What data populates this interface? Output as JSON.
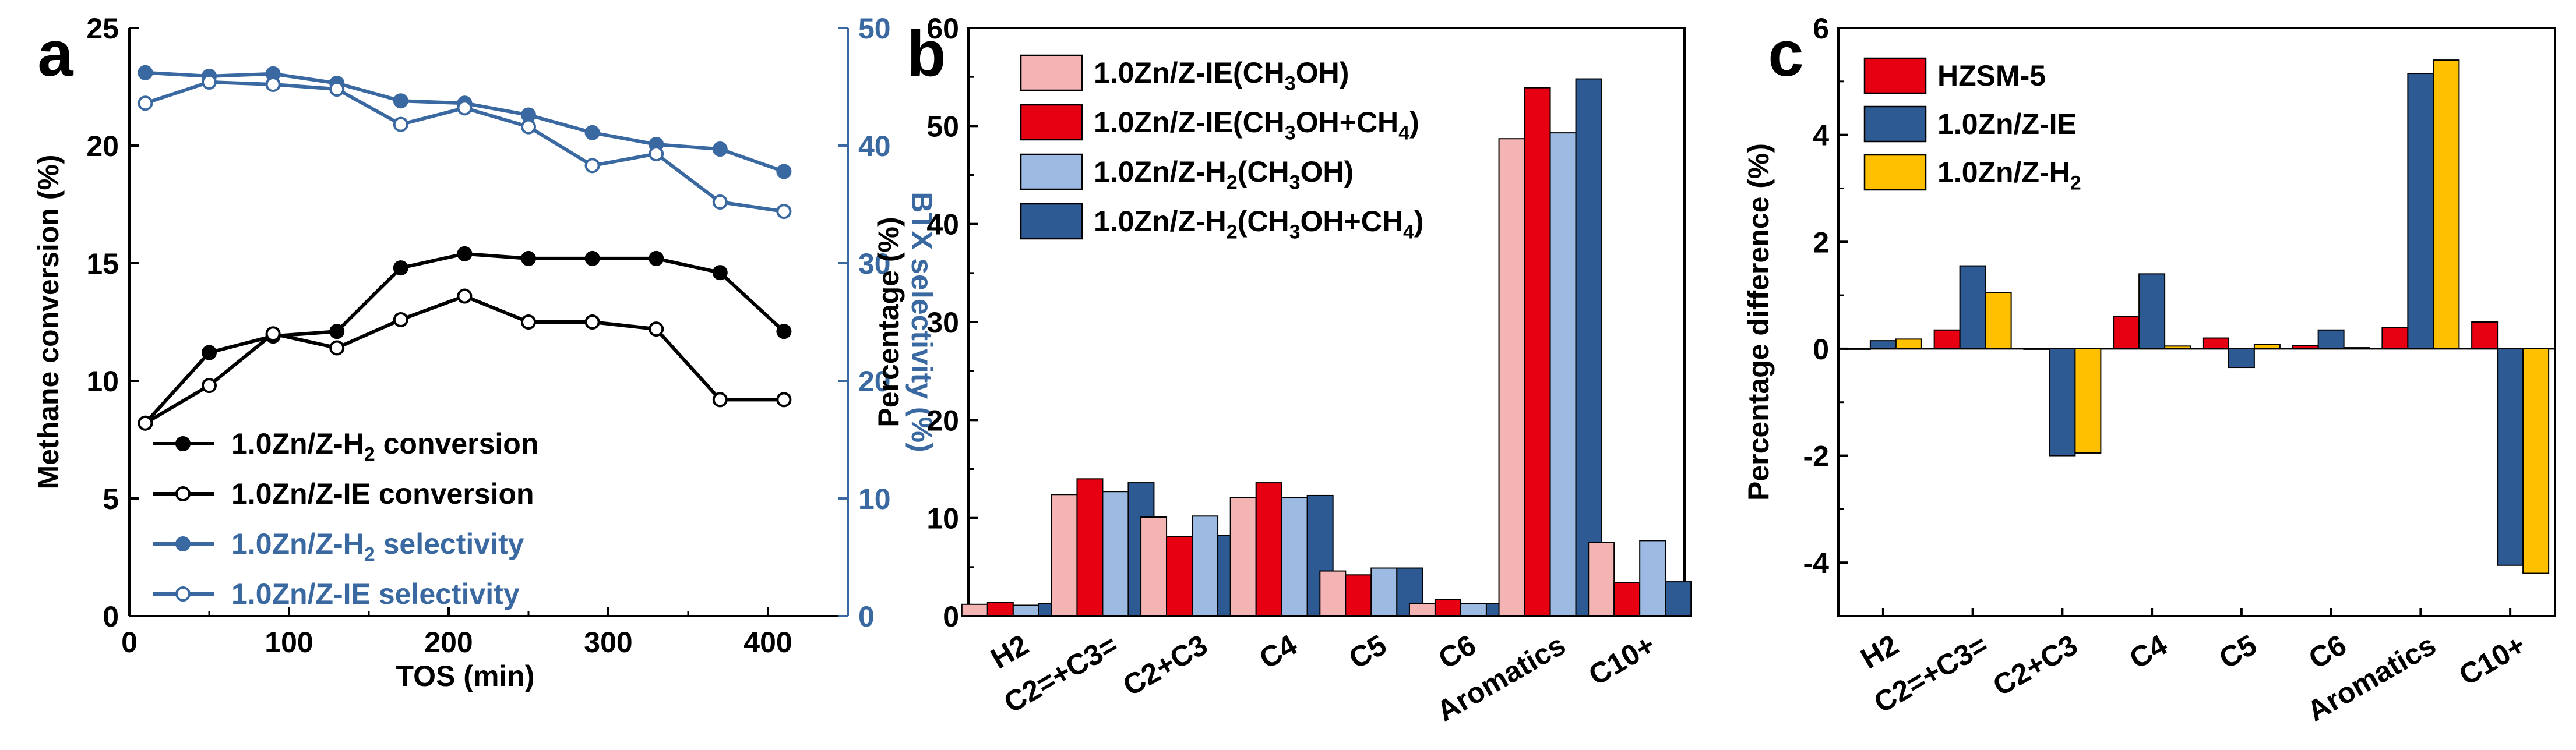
{
  "chart_data": [
    {
      "panel": "a",
      "type": "line",
      "xlabel": "TOS (min)",
      "ylabel": "Methane conversion (%)",
      "y2label": "BTX selectivity (%)",
      "xlim": [
        0,
        450
      ],
      "ylim": [
        0,
        25
      ],
      "y2lim": [
        0,
        50
      ],
      "xticks": [
        0,
        100,
        200,
        300,
        400
      ],
      "yticks": [
        0,
        5,
        10,
        15,
        20,
        25
      ],
      "y2ticks": [
        0,
        10,
        20,
        30,
        40,
        50
      ],
      "legend_position": "lower-left",
      "colors": {
        "black": "#000000",
        "blue": "#3a68a0"
      },
      "series": [
        {
          "name": "1.0Zn/Z-H2 conversion",
          "label_main": "1.0Zn/Z-H",
          "label_sub": "2",
          "label_tail": " conversion",
          "axis": "left",
          "marker": "filled",
          "color": "#000000",
          "x": [
            10,
            50,
            90,
            130,
            170,
            210,
            250,
            290,
            330,
            370,
            410
          ],
          "values": [
            8.2,
            11.2,
            11.9,
            12.1,
            14.8,
            15.4,
            15.2,
            15.2,
            15.2,
            14.6,
            12.1
          ]
        },
        {
          "name": "1.0Zn/Z-IE conversion",
          "label_main": "1.0Zn/Z-IE",
          "label_sub": "",
          "label_tail": " conversion",
          "axis": "left",
          "marker": "open",
          "color": "#000000",
          "x": [
            10,
            50,
            90,
            130,
            170,
            210,
            250,
            290,
            330,
            370,
            410
          ],
          "values": [
            8.2,
            9.8,
            12.0,
            11.4,
            12.6,
            13.6,
            12.5,
            12.5,
            12.2,
            9.2,
            9.2
          ]
        },
        {
          "name": "1.0Zn/Z-H2 selectivity",
          "label_main": "1.0Zn/Z-H",
          "label_sub": "2",
          "label_tail": " selectivity",
          "axis": "right",
          "marker": "filled",
          "color": "#3a68a0",
          "x": [
            10,
            50,
            90,
            130,
            170,
            210,
            250,
            290,
            330,
            370,
            410
          ],
          "values": [
            46.2,
            45.9,
            46.1,
            45.3,
            43.8,
            43.6,
            42.6,
            41.1,
            40.1,
            39.7,
            37.8
          ]
        },
        {
          "name": "1.0Zn/Z-IE selectivity",
          "label_main": "1.0Zn/Z-IE",
          "label_sub": "",
          "label_tail": " selectivity",
          "axis": "right",
          "marker": "open",
          "color": "#3a68a0",
          "x": [
            10,
            50,
            90,
            130,
            170,
            210,
            250,
            290,
            330,
            370,
            410
          ],
          "values": [
            43.6,
            45.4,
            45.2,
            44.8,
            41.8,
            43.2,
            41.6,
            38.3,
            39.3,
            35.2,
            34.4
          ]
        }
      ]
    },
    {
      "panel": "b",
      "type": "bar",
      "ylabel": "Percentage (%)",
      "ylim": [
        0,
        60
      ],
      "yticks": [
        0,
        10,
        20,
        30,
        40,
        50,
        60
      ],
      "legend_position": "top-left",
      "categories": [
        "H2",
        "C2=+C3=",
        "C2+C3",
        "C4",
        "C5",
        "C6",
        "Aromatics",
        "C10+"
      ],
      "series": [
        {
          "name": "1.0Zn/Z-IE(CH3OH)",
          "label_parts": [
            [
              "1.0Zn/Z-IE(CH",
              ""
            ],
            [
              "3",
              "sub"
            ],
            [
              "OH)",
              ""
            ]
          ],
          "color": "#f4b4b4",
          "values": [
            1.2,
            12.4,
            10.1,
            12.1,
            4.6,
            1.3,
            48.7,
            7.5
          ]
        },
        {
          "name": "1.0Zn/Z-IE(CH3OH+CH4)",
          "label_parts": [
            [
              "1.0Zn/Z-IE(CH",
              ""
            ],
            [
              "3",
              "sub"
            ],
            [
              "OH+CH",
              ""
            ],
            [
              "4",
              "sub"
            ],
            [
              ")",
              ""
            ]
          ],
          "color": "#e60012",
          "values": [
            1.4,
            14.0,
            8.1,
            13.6,
            4.2,
            1.7,
            53.9,
            3.4
          ]
        },
        {
          "name": "1.0Zn/Z-H2(CH3OH)",
          "label_parts": [
            [
              "1.0Zn/Z-H",
              ""
            ],
            [
              "2",
              "sub"
            ],
            [
              "(CH",
              ""
            ],
            [
              "3",
              "sub"
            ],
            [
              "OH)",
              ""
            ]
          ],
          "color": "#9dbbe2",
          "values": [
            1.1,
            12.7,
            10.2,
            12.1,
            4.9,
            1.3,
            49.3,
            7.7
          ]
        },
        {
          "name": "1.0Zn/Z-H2(CH3OH+CH4)",
          "label_parts": [
            [
              "1.0Zn/Z-H",
              ""
            ],
            [
              "2",
              "sub"
            ],
            [
              "(CH",
              ""
            ],
            [
              "3",
              "sub"
            ],
            [
              "OH+CH",
              ""
            ],
            [
              "4",
              "sub"
            ],
            [
              ")",
              ""
            ]
          ],
          "color": "#2e5a94",
          "values": [
            1.3,
            13.6,
            8.2,
            12.3,
            4.9,
            1.3,
            54.8,
            3.5
          ]
        }
      ]
    },
    {
      "panel": "c",
      "type": "bar",
      "ylabel": "Percentage difference (%)",
      "ylim": [
        -5,
        6
      ],
      "yticks": [
        -4,
        -2,
        0,
        2,
        4,
        6
      ],
      "legend_position": "top-left",
      "categories": [
        "H2",
        "C2=+C3=",
        "C2+C3",
        "C4",
        "C5",
        "C6",
        "Aromatics",
        "C10+"
      ],
      "series": [
        {
          "name": "HZSM-5",
          "label_parts": [
            [
              "HZSM-5",
              ""
            ]
          ],
          "color": "#e60012",
          "values": [
            0.0,
            0.35,
            0.0,
            0.6,
            0.2,
            0.06,
            0.4,
            0.5
          ]
        },
        {
          "name": "1.0Zn/Z-IE",
          "label_parts": [
            [
              "1.0Zn/Z-IE",
              ""
            ]
          ],
          "color": "#2e5a94",
          "values": [
            0.15,
            1.55,
            -2.0,
            1.4,
            -0.35,
            0.35,
            5.15,
            -4.05
          ]
        },
        {
          "name": "1.0Zn/Z-H2",
          "label_parts": [
            [
              "1.0Zn/Z-H",
              ""
            ],
            [
              "2",
              "sub"
            ]
          ],
          "color": "#ffc000",
          "values": [
            0.18,
            1.05,
            -1.95,
            0.05,
            0.08,
            0.02,
            5.4,
            -4.2
          ]
        }
      ]
    }
  ],
  "panel_labels": [
    "a",
    "b",
    "c"
  ]
}
